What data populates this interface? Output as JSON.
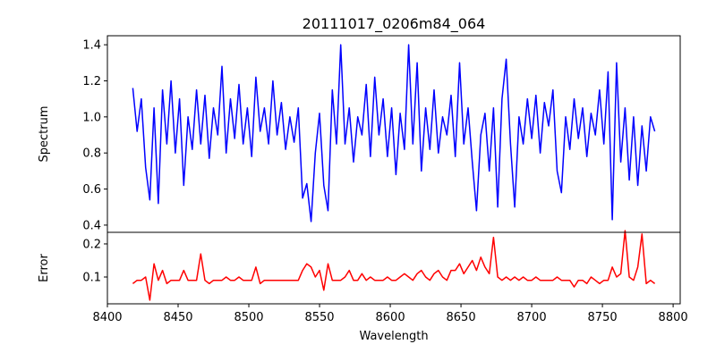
{
  "chart_data": {
    "type": "line",
    "title": "20111017_0206m84_064",
    "xlabel": "Wavelength",
    "xlim": [
      8400,
      8805
    ],
    "xticks": [
      8400,
      8450,
      8500,
      8550,
      8600,
      8650,
      8700,
      8750,
      8800
    ],
    "panels": [
      {
        "name": "spectrum",
        "ylabel": "Spectrum",
        "ylim": [
          0.36,
          1.45
        ],
        "yticks": [
          0.4,
          0.6,
          0.8,
          1.0,
          1.2,
          1.4
        ],
        "color": "#0000ff",
        "x_start": 8418,
        "x_step": 3,
        "values": [
          1.16,
          0.92,
          1.1,
          0.72,
          0.54,
          1.05,
          0.52,
          1.15,
          0.85,
          1.2,
          0.8,
          1.1,
          0.62,
          1.0,
          0.82,
          1.15,
          0.85,
          1.12,
          0.77,
          1.05,
          0.9,
          1.28,
          0.8,
          1.1,
          0.88,
          1.18,
          0.85,
          1.05,
          0.78,
          1.22,
          0.92,
          1.05,
          0.85,
          1.2,
          0.9,
          1.08,
          0.82,
          1.0,
          0.86,
          1.05,
          0.55,
          0.63,
          0.42,
          0.8,
          1.02,
          0.62,
          0.48,
          1.15,
          0.85,
          1.4,
          0.85,
          1.05,
          0.75,
          1.0,
          0.9,
          1.18,
          0.78,
          1.22,
          0.9,
          1.1,
          0.78,
          1.05,
          0.68,
          1.02,
          0.82,
          1.4,
          0.85,
          1.3,
          0.7,
          1.05,
          0.82,
          1.15,
          0.8,
          1.0,
          0.9,
          1.12,
          0.78,
          1.3,
          0.85,
          1.05,
          0.75,
          0.48,
          0.9,
          1.02,
          0.7,
          1.05,
          0.5,
          1.1,
          1.32,
          0.85,
          0.5,
          1.0,
          0.85,
          1.1,
          0.88,
          1.12,
          0.8,
          1.08,
          0.95,
          1.15,
          0.7,
          0.58,
          1.0,
          0.82,
          1.1,
          0.88,
          1.05,
          0.78,
          1.02,
          0.9,
          1.15,
          0.85,
          1.25,
          0.43,
          1.3,
          0.75,
          1.05,
          0.65,
          1.0,
          0.62,
          0.95,
          0.7,
          1.0,
          0.92
        ]
      },
      {
        "name": "error",
        "ylabel": "Error",
        "ylim": [
          0.019,
          0.235
        ],
        "yticks": [
          0.1,
          0.2
        ],
        "color": "#ff0000",
        "x_start": 8418,
        "x_step": 3,
        "values": [
          0.08,
          0.09,
          0.09,
          0.1,
          0.03,
          0.14,
          0.09,
          0.12,
          0.08,
          0.09,
          0.09,
          0.09,
          0.12,
          0.09,
          0.09,
          0.09,
          0.17,
          0.09,
          0.08,
          0.09,
          0.09,
          0.09,
          0.1,
          0.09,
          0.09,
          0.1,
          0.09,
          0.09,
          0.09,
          0.13,
          0.08,
          0.09,
          0.09,
          0.09,
          0.09,
          0.09,
          0.09,
          0.09,
          0.09,
          0.09,
          0.12,
          0.14,
          0.13,
          0.1,
          0.12,
          0.06,
          0.14,
          0.09,
          0.09,
          0.09,
          0.1,
          0.12,
          0.09,
          0.09,
          0.11,
          0.09,
          0.1,
          0.09,
          0.09,
          0.09,
          0.1,
          0.09,
          0.09,
          0.1,
          0.11,
          0.1,
          0.09,
          0.11,
          0.12,
          0.1,
          0.09,
          0.11,
          0.12,
          0.1,
          0.09,
          0.12,
          0.12,
          0.14,
          0.11,
          0.13,
          0.15,
          0.12,
          0.16,
          0.13,
          0.11,
          0.22,
          0.1,
          0.09,
          0.1,
          0.09,
          0.1,
          0.09,
          0.1,
          0.09,
          0.09,
          0.1,
          0.09,
          0.09,
          0.09,
          0.09,
          0.1,
          0.09,
          0.09,
          0.09,
          0.07,
          0.09,
          0.09,
          0.08,
          0.1,
          0.09,
          0.08,
          0.09,
          0.09,
          0.13,
          0.1,
          0.11,
          0.24,
          0.1,
          0.09,
          0.13,
          0.23,
          0.08,
          0.09,
          0.08
        ]
      }
    ]
  }
}
